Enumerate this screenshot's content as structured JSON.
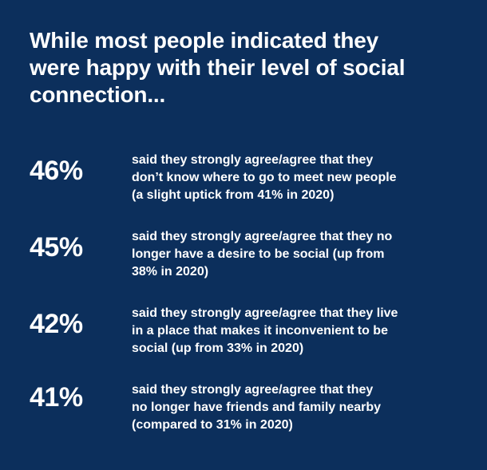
{
  "headline": {
    "lines": [
      "While most people indicated they",
      "were happy with their level of social",
      "connection..."
    ]
  },
  "stats": [
    {
      "value": "46%",
      "lines": [
        "said they strongly agree/agree that they",
        "don’t know where to go to meet new people",
        "(a slight uptick from 41% in 2020)"
      ]
    },
    {
      "value": "45%",
      "lines": [
        "said they strongly agree/agree that they no",
        "longer have a desire to be social (up from",
        "38% in 2020)"
      ]
    },
    {
      "value": "42%",
      "lines": [
        "said they strongly agree/agree that they live",
        "in a place that makes it inconvenient to be",
        "social (up from 33% in 2020)"
      ]
    },
    {
      "value": "41%",
      "lines": [
        "said they strongly agree/agree that they",
        "no longer have friends and family nearby",
        "(compared to 31% in 2020)"
      ]
    }
  ],
  "colors": {
    "background": "#0c2f5c",
    "text": "#ffffff"
  }
}
